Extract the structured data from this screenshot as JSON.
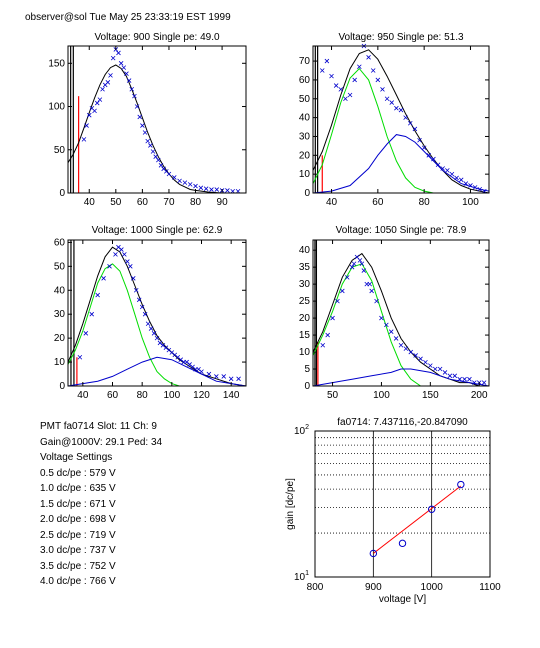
{
  "header": "observer@sol  Tue May 25 23:33:19 EST 1999",
  "info": {
    "pmt_line": "PMT fa0714 Slot: 11 Ch: 9",
    "gain_line": "Gain@1000V: 29.1 Ped: 34",
    "settings_title": "Voltage Settings",
    "settings": [
      "0.5 dc/pe : 579 V",
      "1.0 dc/pe : 635 V",
      "1.5 dc/pe : 671 V",
      "2.0 dc/pe : 698 V",
      "2.5 dc/pe : 719 V",
      "3.0 dc/pe : 737 V",
      "3.5 dc/pe : 752 V",
      "4.0 dc/pe : 766 V"
    ]
  },
  "chart_data": [
    {
      "type": "scatter",
      "title": "Voltage: 900 Single pe: 49.0",
      "xlim": [
        32,
        99
      ],
      "ylim": [
        0,
        170
      ],
      "xticks": [
        40,
        50,
        60,
        70,
        80,
        90
      ],
      "yticks": [
        0,
        50,
        100,
        150
      ],
      "points": [
        [
          38,
          62
        ],
        [
          39,
          78
        ],
        [
          40,
          90
        ],
        [
          41,
          98
        ],
        [
          42,
          95
        ],
        [
          43,
          104
        ],
        [
          44,
          108
        ],
        [
          45,
          120
        ],
        [
          46,
          125
        ],
        [
          47,
          128
        ],
        [
          48,
          136
        ],
        [
          49,
          156
        ],
        [
          50,
          166
        ],
        [
          51,
          162
        ],
        [
          52,
          150
        ],
        [
          53,
          145
        ],
        [
          54,
          138
        ],
        [
          55,
          130
        ],
        [
          56,
          120
        ],
        [
          57,
          112
        ],
        [
          58,
          100
        ],
        [
          59,
          88
        ],
        [
          60,
          78
        ],
        [
          61,
          70
        ],
        [
          62,
          60
        ],
        [
          63,
          55
        ],
        [
          64,
          48
        ],
        [
          65,
          42
        ],
        [
          66,
          38
        ],
        [
          67,
          32
        ],
        [
          68,
          28
        ],
        [
          69,
          25
        ],
        [
          70,
          22
        ],
        [
          72,
          18
        ],
        [
          74,
          14
        ],
        [
          76,
          12
        ],
        [
          78,
          10
        ],
        [
          80,
          8
        ],
        [
          82,
          6
        ],
        [
          84,
          5
        ],
        [
          86,
          4
        ],
        [
          88,
          4
        ],
        [
          90,
          3
        ],
        [
          92,
          3
        ],
        [
          94,
          2
        ],
        [
          96,
          2
        ]
      ],
      "curves": [
        {
          "color": "#000000",
          "x": [
            32,
            34,
            36,
            38,
            40,
            42,
            44,
            46,
            48,
            50,
            52,
            54,
            56,
            58,
            60,
            62,
            64,
            66,
            68,
            70,
            72,
            74,
            76,
            78,
            80,
            85,
            90,
            95,
            99
          ],
          "y": [
            35,
            45,
            58,
            75,
            93,
            110,
            125,
            137,
            145,
            148,
            144,
            135,
            120,
            104,
            87,
            70,
            55,
            42,
            31,
            22,
            15,
            10,
            7,
            4,
            3,
            1,
            0,
            0,
            0
          ]
        }
      ],
      "markers": [
        {
          "x": 33,
          "color": "#000000"
        },
        {
          "x": 34,
          "color": "#000000"
        },
        {
          "x": 36,
          "color": "#ff0000",
          "ytop": 112
        }
      ]
    },
    {
      "type": "scatter",
      "title": "Voltage: 950 Single pe: 51.3",
      "xlim": [
        32,
        108
      ],
      "ylim": [
        0,
        78
      ],
      "xticks": [
        40,
        60,
        80,
        100
      ],
      "yticks": [
        0,
        10,
        20,
        30,
        40,
        50,
        60,
        70
      ],
      "points": [
        [
          36,
          65
        ],
        [
          38,
          70
        ],
        [
          40,
          62
        ],
        [
          42,
          57
        ],
        [
          44,
          55
        ],
        [
          46,
          50
        ],
        [
          48,
          52
        ],
        [
          50,
          60
        ],
        [
          52,
          67
        ],
        [
          54,
          78
        ],
        [
          56,
          72
        ],
        [
          58,
          65
        ],
        [
          60,
          60
        ],
        [
          62,
          55
        ],
        [
          64,
          50
        ],
        [
          66,
          48
        ],
        [
          68,
          45
        ],
        [
          70,
          44
        ],
        [
          72,
          40
        ],
        [
          74,
          37
        ],
        [
          76,
          34
        ],
        [
          78,
          28
        ],
        [
          80,
          24
        ],
        [
          82,
          20
        ],
        [
          84,
          18
        ],
        [
          86,
          15
        ],
        [
          88,
          13
        ],
        [
          90,
          12
        ],
        [
          92,
          10
        ],
        [
          94,
          8
        ],
        [
          96,
          7
        ],
        [
          98,
          5
        ],
        [
          100,
          4
        ],
        [
          102,
          3
        ],
        [
          104,
          2
        ],
        [
          106,
          1
        ]
      ],
      "curves": [
        {
          "color": "#000000",
          "x": [
            32,
            36,
            40,
            44,
            48,
            52,
            56,
            60,
            64,
            68,
            72,
            76,
            80,
            84,
            88,
            92,
            96,
            100,
            104,
            108
          ],
          "y": [
            12,
            22,
            36,
            52,
            66,
            74,
            76,
            71,
            62,
            52,
            42,
            33,
            25,
            18,
            12,
            7,
            4,
            2,
            1,
            0
          ]
        },
        {
          "color": "#00dd00",
          "x": [
            32,
            36,
            40,
            44,
            48,
            52,
            56,
            60,
            64,
            68,
            72,
            76,
            80,
            84,
            88,
            92
          ],
          "y": [
            5,
            15,
            31,
            48,
            61,
            66,
            60,
            46,
            30,
            17,
            8,
            3,
            1,
            0,
            0,
            0
          ]
        },
        {
          "color": "#0000cc",
          "x": [
            32,
            40,
            48,
            56,
            60,
            64,
            68,
            72,
            76,
            80,
            88,
            96,
            104,
            108
          ],
          "y": [
            0,
            1,
            4,
            13,
            20,
            26,
            31,
            30,
            27,
            22,
            12,
            5,
            2,
            1
          ]
        }
      ],
      "markers": [
        {
          "x": 33,
          "color": "#000000"
        },
        {
          "x": 34,
          "color": "#000000"
        },
        {
          "x": 36,
          "color": "#ff0000",
          "ytop": 20
        }
      ]
    },
    {
      "type": "scatter",
      "title": "Voltage: 1000 Single pe: 62.9",
      "xlim": [
        30,
        150
      ],
      "ylim": [
        0,
        61
      ],
      "xticks": [
        40,
        60,
        80,
        100,
        120,
        140
      ],
      "yticks": [
        0,
        10,
        20,
        30,
        40,
        50,
        60
      ],
      "points": [
        [
          38,
          12
        ],
        [
          42,
          22
        ],
        [
          46,
          30
        ],
        [
          50,
          38
        ],
        [
          54,
          45
        ],
        [
          58,
          50
        ],
        [
          62,
          55
        ],
        [
          64,
          58
        ],
        [
          66,
          57
        ],
        [
          68,
          55
        ],
        [
          70,
          52
        ],
        [
          72,
          50
        ],
        [
          74,
          45
        ],
        [
          76,
          40
        ],
        [
          78,
          36
        ],
        [
          80,
          33
        ],
        [
          82,
          30
        ],
        [
          84,
          26
        ],
        [
          86,
          24
        ],
        [
          88,
          22
        ],
        [
          90,
          20
        ],
        [
          92,
          18
        ],
        [
          94,
          17
        ],
        [
          96,
          16
        ],
        [
          98,
          15
        ],
        [
          100,
          14
        ],
        [
          102,
          13
        ],
        [
          104,
          12
        ],
        [
          106,
          11
        ],
        [
          108,
          10
        ],
        [
          110,
          10
        ],
        [
          112,
          9
        ],
        [
          114,
          8
        ],
        [
          116,
          7
        ],
        [
          118,
          7
        ],
        [
          120,
          6
        ],
        [
          125,
          5
        ],
        [
          130,
          4
        ],
        [
          135,
          4
        ],
        [
          140,
          3
        ],
        [
          145,
          3
        ]
      ],
      "curves": [
        {
          "color": "#000000",
          "x": [
            30,
            35,
            40,
            45,
            50,
            55,
            60,
            65,
            70,
            75,
            80,
            85,
            90,
            95,
            100,
            105,
            110,
            120,
            130,
            140,
            150
          ],
          "y": [
            10,
            17,
            26,
            36,
            46,
            54,
            58,
            56,
            50,
            42,
            34,
            27,
            21,
            17,
            14,
            11,
            9,
            5,
            3,
            1,
            0
          ]
        },
        {
          "color": "#00dd00",
          "x": [
            30,
            35,
            40,
            45,
            50,
            55,
            60,
            65,
            70,
            75,
            80,
            85,
            90,
            95,
            100,
            105,
            110
          ],
          "y": [
            9,
            15,
            23,
            33,
            43,
            49,
            51,
            48,
            40,
            30,
            20,
            12,
            6,
            3,
            1,
            0,
            0
          ]
        },
        {
          "color": "#0000cc",
          "x": [
            30,
            40,
            50,
            60,
            70,
            80,
            90,
            100,
            110,
            120,
            130,
            140,
            150
          ],
          "y": [
            0,
            1,
            2,
            4,
            7,
            10,
            12,
            11,
            8,
            5,
            2,
            1,
            0
          ]
        }
      ],
      "markers": [
        {
          "x": 32,
          "color": "#000000"
        },
        {
          "x": 34,
          "color": "#000000"
        },
        {
          "x": 36,
          "color": "#ff0000",
          "ytop": 12
        }
      ]
    },
    {
      "type": "scatter",
      "title": "Voltage: 1050 Single pe: 78.9",
      "xlim": [
        30,
        210
      ],
      "ylim": [
        0,
        43
      ],
      "xticks": [
        50,
        100,
        150,
        200
      ],
      "yticks": [
        0,
        5,
        10,
        15,
        20,
        25,
        30,
        35,
        40
      ],
      "points": [
        [
          40,
          12
        ],
        [
          45,
          15
        ],
        [
          50,
          20
        ],
        [
          55,
          25
        ],
        [
          60,
          28
        ],
        [
          65,
          32
        ],
        [
          70,
          35
        ],
        [
          72,
          36
        ],
        [
          75,
          38
        ],
        [
          78,
          37
        ],
        [
          80,
          36
        ],
        [
          82,
          34
        ],
        [
          85,
          30
        ],
        [
          88,
          30
        ],
        [
          90,
          28
        ],
        [
          95,
          25
        ],
        [
          100,
          20
        ],
        [
          105,
          18
        ],
        [
          110,
          16
        ],
        [
          115,
          14
        ],
        [
          120,
          12
        ],
        [
          125,
          11
        ],
        [
          130,
          10
        ],
        [
          135,
          9
        ],
        [
          140,
          8
        ],
        [
          145,
          7
        ],
        [
          150,
          6
        ],
        [
          155,
          5
        ],
        [
          160,
          5
        ],
        [
          165,
          4
        ],
        [
          170,
          3
        ],
        [
          175,
          3
        ],
        [
          180,
          2
        ],
        [
          185,
          2
        ],
        [
          190,
          2
        ],
        [
          195,
          1
        ],
        [
          200,
          1
        ],
        [
          205,
          1
        ]
      ],
      "curves": [
        {
          "color": "#000000",
          "x": [
            30,
            40,
            50,
            60,
            70,
            80,
            90,
            100,
            110,
            120,
            130,
            140,
            150,
            160,
            170,
            180,
            190,
            200,
            210
          ],
          "y": [
            10,
            16,
            24,
            32,
            37,
            39,
            35,
            28,
            20,
            14,
            10,
            7,
            5,
            3,
            2,
            1,
            1,
            0,
            0
          ]
        },
        {
          "color": "#00dd00",
          "x": [
            30,
            40,
            50,
            60,
            70,
            80,
            90,
            100,
            110,
            120,
            130,
            140
          ],
          "y": [
            9,
            15,
            22,
            30,
            35,
            36,
            31,
            22,
            13,
            6,
            2,
            0
          ]
        },
        {
          "color": "#0000cc",
          "x": [
            30,
            50,
            70,
            90,
            110,
            120,
            130,
            150,
            170,
            190,
            210
          ],
          "y": [
            0,
            1,
            2,
            3,
            4,
            5,
            5,
            4,
            2,
            1,
            0
          ]
        }
      ],
      "markers": [
        {
          "x": 32,
          "color": "#000000"
        },
        {
          "x": 33.5,
          "color": "#000000"
        },
        {
          "x": 35,
          "color": "#ff0000",
          "ytop": 13
        }
      ]
    },
    {
      "type": "scatter",
      "title": "fa0714: 7.437116,-20.847090",
      "xlabel": "voltage [V]",
      "ylabel": "gain [dc/pe]",
      "xlim": [
        800,
        1100
      ],
      "ylim": [
        10,
        100
      ],
      "yscale": "log",
      "xticks": [
        800,
        900,
        1000,
        1100
      ],
      "yticks": [
        10,
        100
      ],
      "ytick_labels": [
        "10^1",
        "10^2"
      ],
      "grid": "major vertical lines, minor horizontal dotted",
      "points": [
        [
          900,
          14.5
        ],
        [
          950,
          17
        ],
        [
          1000,
          29.1
        ],
        [
          1050,
          43
        ]
      ],
      "fit": {
        "x": [
          900,
          1050
        ],
        "y": [
          14.5,
          42
        ],
        "color": "#ff0000"
      },
      "marker_color": "#0000cc"
    }
  ]
}
